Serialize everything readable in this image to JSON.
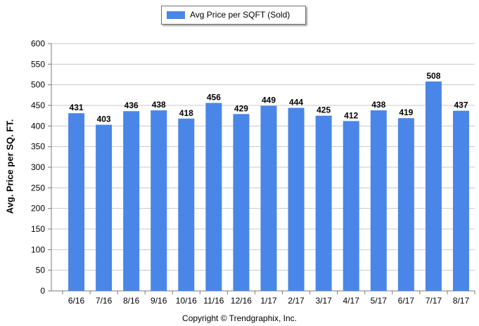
{
  "chart_data": {
    "type": "bar",
    "categories": [
      "6/16",
      "7/16",
      "8/16",
      "9/16",
      "10/16",
      "11/16",
      "12/16",
      "1/17",
      "2/17",
      "3/17",
      "4/17",
      "5/17",
      "6/17",
      "7/17",
      "8/17"
    ],
    "series": [
      {
        "name": "Avg Price per SQFT (Sold)",
        "values": [
          431,
          403,
          436,
          438,
          418,
          456,
          429,
          449,
          444,
          425,
          412,
          438,
          419,
          508,
          437
        ]
      }
    ],
    "ylabel": "Avg. Price per SQ. FT.",
    "xlabel": "",
    "ylim": [
      0,
      600
    ],
    "yticks": [
      0,
      50,
      100,
      150,
      200,
      250,
      300,
      350,
      400,
      450,
      500,
      550,
      600
    ],
    "grid": true,
    "legend_position": "top-center",
    "bar_color": "#4a86e8",
    "data_labels": true
  },
  "footer": {
    "copyright": "Copyright © Trendgraphix, Inc."
  }
}
